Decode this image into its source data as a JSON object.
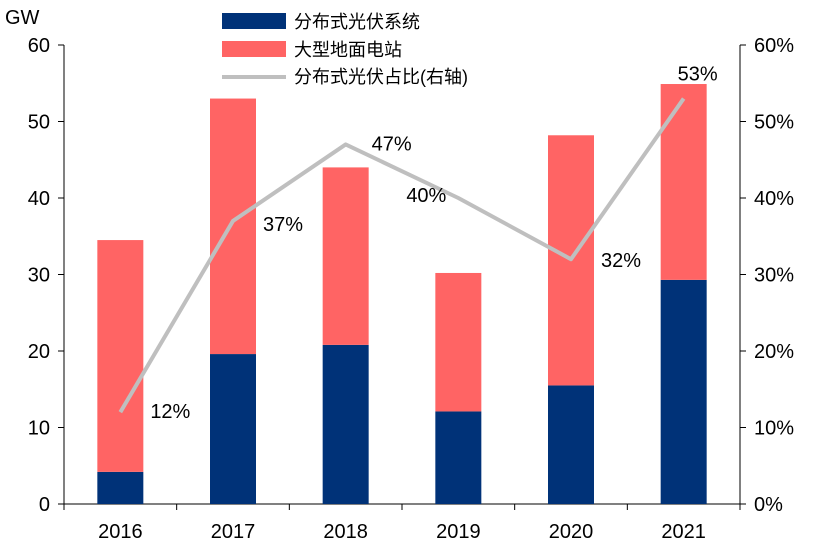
{
  "chart_data": {
    "type": "bar",
    "stacked": true,
    "categories": [
      "2016",
      "2017",
      "2018",
      "2019",
      "2020",
      "2021"
    ],
    "series": [
      {
        "name": "分布式光伏系统",
        "values": [
          4.2,
          19.6,
          20.8,
          12.1,
          15.5,
          29.3
        ],
        "color": "#003278"
      },
      {
        "name": "大型地面电站",
        "values": [
          30.3,
          33.4,
          23.2,
          18.1,
          32.7,
          25.6
        ],
        "color": "#ff6464"
      }
    ],
    "line": {
      "name": "分布式光伏占比(右轴)",
      "values": [
        12,
        37,
        47,
        40,
        32,
        53
      ],
      "labels": [
        "12%",
        "37%",
        "47%",
        "40%",
        "32%",
        "53%"
      ],
      "color": "#bfbfbf",
      "axis": "right"
    },
    "y_left": {
      "unit": "GW",
      "min": 0,
      "max": 60,
      "ticks": [
        "0",
        "10",
        "20",
        "30",
        "40",
        "50",
        "60"
      ]
    },
    "y_right": {
      "min": 0,
      "max": 60,
      "ticks": [
        "0%",
        "10%",
        "20%",
        "30%",
        "40%",
        "50%",
        "60%"
      ]
    },
    "legend_position": "top",
    "grid": false
  }
}
